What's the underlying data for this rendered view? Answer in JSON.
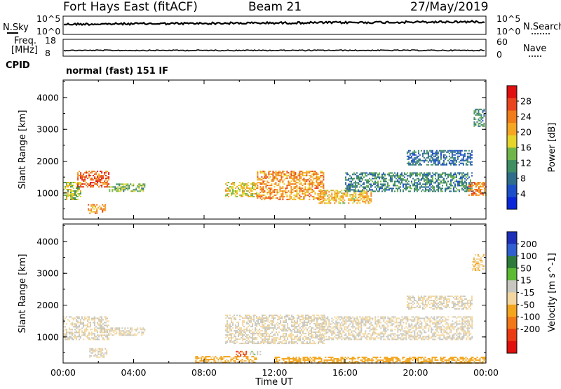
{
  "header": {
    "station": "Fort Hays East (fitACF)",
    "beam": "Beam 21",
    "date": "27/May/2019"
  },
  "status_panels": {
    "nsky_label": "N.Sky",
    "nsearch_label": "N.Search",
    "noise_ticks_left": [
      "10^5",
      "10^0"
    ],
    "noise_ticks_right": [
      "10^5",
      "10^0"
    ],
    "freq_label_line1": "Freq.",
    "freq_label_line2": "[MHz]",
    "freq_ticks": [
      "18",
      "8"
    ],
    "nave_label": "Nave",
    "nave_ticks": [
      "60",
      "0"
    ],
    "cpid_label": "CPID",
    "cpid_value": "normal (fast) 151 IF"
  },
  "x_axis": {
    "label": "Time UT",
    "ticks": [
      "00:00",
      "04:00",
      "08:00",
      "12:00",
      "16:00",
      "20:00",
      "00:00"
    ]
  },
  "colors": {
    "power_scale": [
      "#0a28d8",
      "#1d4fc9",
      "#2f6d8a",
      "#3f8f63",
      "#6fb54a",
      "#e6d52a",
      "#f5a623",
      "#f07d1a",
      "#e8461e",
      "#e01010"
    ],
    "velocity_scale": [
      "#1d2fb8",
      "#2f5fd0",
      "#2e7a3a",
      "#5cbb33",
      "#c7c7c0",
      "#f3d7a0",
      "#f4a51e",
      "#f17817",
      "#ea3b12",
      "#e0100e"
    ]
  },
  "chart_data": [
    {
      "type": "heatmap",
      "title": "",
      "xlabel": "",
      "ylabel": "Slant Range [km]",
      "xlim": [
        0,
        24
      ],
      "ylim": [
        180,
        4550
      ],
      "yticks": [
        "1000",
        "2000",
        "3000",
        "4000"
      ],
      "colorbar_label": "Power [dB]",
      "colorbar_range": [
        0,
        32
      ],
      "colorbar_ticks": [
        "4",
        "8",
        "12",
        "16",
        "20",
        "24",
        "28"
      ],
      "regions": [
        {
          "t_start": 0.0,
          "t_end": 1.0,
          "range_km": [
            800,
            1350
          ],
          "value": 16
        },
        {
          "t_start": 0.8,
          "t_end": 2.6,
          "range_km": [
            1200,
            1700
          ],
          "value": 26
        },
        {
          "t_start": 1.4,
          "t_end": 2.4,
          "range_km": [
            380,
            650
          ],
          "value": 22
        },
        {
          "t_start": 2.6,
          "t_end": 4.6,
          "range_km": [
            1050,
            1300
          ],
          "value": 14
        },
        {
          "t_start": 9.2,
          "t_end": 11.0,
          "range_km": [
            900,
            1350
          ],
          "value": 18
        },
        {
          "t_start": 11.0,
          "t_end": 14.8,
          "range_km": [
            800,
            1700
          ],
          "value": 22
        },
        {
          "t_start": 14.5,
          "t_end": 17.5,
          "range_km": [
            700,
            1100
          ],
          "value": 20
        },
        {
          "t_start": 16.0,
          "t_end": 23.2,
          "range_km": [
            1050,
            1650
          ],
          "value": 10
        },
        {
          "t_start": 19.5,
          "t_end": 23.2,
          "range_km": [
            1900,
            2350
          ],
          "value": 8
        },
        {
          "t_start": 23.0,
          "t_end": 24.0,
          "range_km": [
            950,
            1350
          ],
          "value": 24
        },
        {
          "t_start": 23.3,
          "t_end": 23.9,
          "range_km": [
            3100,
            3650
          ],
          "value": 10
        }
      ]
    },
    {
      "type": "heatmap",
      "title": "",
      "xlabel": "Time UT",
      "ylabel": "Slant Range [km]",
      "xlim": [
        0,
        24
      ],
      "ylim": [
        180,
        4550
      ],
      "yticks": [
        "1000",
        "2000",
        "3000",
        "4000"
      ],
      "colorbar_label": "Velocity [m s^-1]",
      "colorbar_range": [
        -250,
        250
      ],
      "colorbar_ticks": [
        "200",
        "100",
        "50",
        "15",
        "-15",
        "-50",
        "-100",
        "-200"
      ],
      "regions": [
        {
          "t_start": 0.0,
          "t_end": 2.6,
          "range_km": [
            900,
            1650
          ],
          "value": 0
        },
        {
          "t_start": 1.4,
          "t_end": 2.5,
          "range_km": [
            380,
            650
          ],
          "value": 0
        },
        {
          "t_start": 2.6,
          "t_end": 4.6,
          "range_km": [
            1050,
            1300
          ],
          "value": 0
        },
        {
          "t_start": 7.5,
          "t_end": 11.0,
          "range_km": [
            200,
            400
          ],
          "value": -60
        },
        {
          "t_start": 9.8,
          "t_end": 10.4,
          "range_km": [
            420,
            560
          ],
          "value": -150
        },
        {
          "t_start": 10.6,
          "t_end": 11.2,
          "range_km": [
            450,
            560
          ],
          "value": 40
        },
        {
          "t_start": 9.2,
          "t_end": 14.8,
          "range_km": [
            800,
            1700
          ],
          "value": 0
        },
        {
          "t_start": 14.5,
          "t_end": 23.2,
          "range_km": [
            900,
            1650
          ],
          "value": 0
        },
        {
          "t_start": 19.5,
          "t_end": 23.2,
          "range_km": [
            1900,
            2300
          ],
          "value": 0
        },
        {
          "t_start": 12.0,
          "t_end": 24.0,
          "range_km": [
            200,
            380
          ],
          "value": -70
        },
        {
          "t_start": 23.2,
          "t_end": 23.9,
          "range_km": [
            3100,
            3600
          ],
          "value": -40
        }
      ]
    }
  ]
}
